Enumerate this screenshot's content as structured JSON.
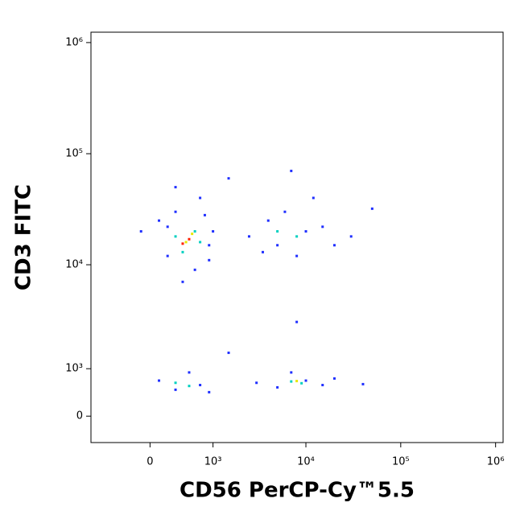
{
  "chart_data": {
    "type": "scatter",
    "x_label": "CD56 PerCP-Cy™5.5",
    "y_label": "CD3 FITC",
    "scale": "biexponential",
    "xlim": [
      -900,
      1200000
    ],
    "ylim": [
      -500,
      1240000
    ],
    "xticks": [
      0,
      {
        "value": 1000,
        "label": "10³"
      },
      {
        "value": 10000,
        "label": "10⁴"
      },
      {
        "value": 100000,
        "label": "10⁵"
      },
      {
        "value": 1000000,
        "label": "10⁶"
      }
    ],
    "yticks": [
      0,
      {
        "value": 1000,
        "label": "10³"
      },
      {
        "value": 10000,
        "label": "10⁴"
      },
      {
        "value": 100000,
        "label": "10⁵"
      },
      {
        "value": 1000000,
        "label": "10⁶"
      }
    ],
    "series": [
      {
        "color": "#1f2fff",
        "x": [
          100,
          300,
          800,
          900,
          200,
          600,
          400,
          1000,
          -100,
          700,
          300,
          1500,
          200,
          900,
          2500,
          4000,
          6000,
          10000,
          15000,
          20000,
          3500,
          8000,
          12000,
          7000,
          30000,
          50000,
          5000,
          100,
          300,
          700,
          500,
          900,
          1500,
          3000,
          5000,
          10000,
          15000,
          20000,
          40000,
          7000,
          8000
        ],
        "values": [
          25000,
          30000,
          28000,
          15000,
          12000,
          9000,
          7000,
          20000,
          20000,
          40000,
          50000,
          60000,
          22000,
          11000,
          18000,
          25000,
          30000,
          20000,
          22000,
          15000,
          13000,
          12000,
          40000,
          70000,
          18000,
          32000,
          15000,
          700,
          500,
          600,
          900,
          450,
          1500,
          650,
          550,
          700,
          600,
          750,
          620,
          900,
          3000
        ]
      },
      {
        "color": "#00d0c0",
        "x": [
          300,
          600,
          400,
          700,
          8000,
          5000,
          300,
          500,
          7000,
          9000
        ],
        "values": [
          18000,
          20000,
          13000,
          16000,
          18000,
          20000,
          650,
          580,
          680,
          640
        ]
      },
      {
        "color": "#e8e800",
        "x": [
          450,
          550,
          8000
        ],
        "values": [
          16000,
          19000,
          690
        ]
      },
      {
        "color": "#ff2000",
        "x": [
          500,
          400
        ],
        "values": [
          17000,
          15500
        ]
      }
    ]
  }
}
